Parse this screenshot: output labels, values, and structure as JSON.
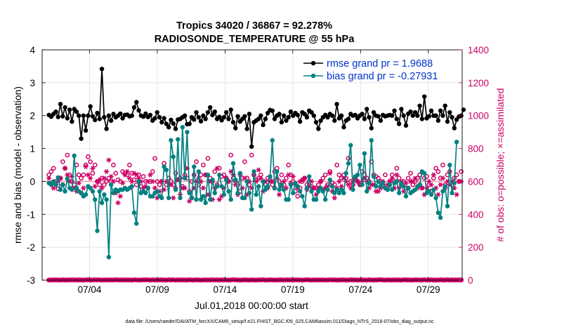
{
  "figure": {
    "title_line1": "Tropics 34020 / 36867 = 92.278%",
    "title_line2": "RADIOSONDE_TEMPERATURE @ 55 hPa",
    "footer": "data file: /Users/raeder/DAI/ATM_forcXX/CAM6_setup/f.e21.FHIST_BGC.f09_025.CAM6assim.011/Diags_NTrS_2018-07/obs_diag_output.nc"
  },
  "colors": {
    "rmse": "#000000",
    "bias": "#008080",
    "obs": "#cc0066",
    "legend_text": "#0033cc",
    "zero_line": "#e6a0a0",
    "grid": "#dddddd"
  },
  "chart_data": {
    "type": "line",
    "xlabel": "Jul.01,2018 00:00:00 start",
    "ylabel": "rmse and bias (model - observation)",
    "y2label": "# of obs: o=possible; ×=assimilated",
    "xlim": [
      0.5,
      31.5
    ],
    "ylim": [
      -3,
      4
    ],
    "y2lim": [
      0,
      1400
    ],
    "x_ticks": [
      4,
      9,
      14,
      19,
      24,
      29
    ],
    "x_tick_labels": [
      "07/04",
      "07/09",
      "07/14",
      "07/19",
      "07/24",
      "07/29"
    ],
    "y_ticks": [
      -3,
      -2,
      -1,
      0,
      1,
      2,
      3,
      4
    ],
    "y2_ticks": [
      0,
      200,
      400,
      600,
      800,
      1000,
      1200,
      1400
    ],
    "legend": [
      "rmse grand pr = 1.9688",
      "bias grand pr = -0.27931"
    ],
    "series": [
      {
        "name": "rmse grand pr = 1.9688",
        "axis": "left",
        "values": [
          2.02,
          1.97,
          2.05,
          2.12,
          1.96,
          2.35,
          1.98,
          2.25,
          1.92,
          2.18,
          1.82,
          2.2,
          2.12,
          2.0,
          1.3,
          2.0,
          1.55,
          2.0,
          2.28,
          1.98,
          1.87,
          2.08,
          1.9,
          3.42,
          1.95,
          1.6,
          2.0,
          1.85,
          2.05,
          1.95,
          2.0,
          2.06,
          1.92,
          2.02,
          2.03,
          1.98,
          2.0,
          2.25,
          2.41,
          2.16,
          2.0,
          1.97,
          2.06,
          1.96,
          2.02,
          1.85,
          1.92,
          2.1,
          1.95,
          1.8,
          1.92,
          1.75,
          1.65,
          1.87,
          1.76,
          1.6,
          1.88,
          1.9,
          1.95,
          2.0,
          1.74,
          1.75,
          1.95,
          1.88,
          2.1,
          1.95,
          1.83,
          2.0,
          1.9,
          2.1,
          2.25,
          2.02,
          2.12,
          1.9,
          1.96,
          1.86,
          1.95,
          2.1,
          1.9,
          2.18,
          1.8,
          1.62,
          1.98,
          1.82,
          1.9,
          1.98,
          1.6,
          2.05,
          1.06,
          1.8,
          1.85,
          1.9,
          2.0,
          1.72,
          1.9,
          2.08,
          2.17,
          2.15,
          1.9,
          2.0,
          2.05,
          1.8,
          2.0,
          1.85,
          1.95,
          2.12,
          2.0,
          2.08,
          2.02,
          1.82,
          2.1,
          2.05,
          1.95,
          2.15,
          2.1,
          2.0,
          1.8,
          1.6,
          1.85,
          1.95,
          2.02,
          1.95,
          2.05,
          2.0,
          1.85,
          2.35,
          1.92,
          2.0,
          1.65,
          1.85,
          1.9,
          2.05,
          2.0,
          2.02,
          1.92,
          2.0,
          2.05,
          1.9,
          2.2,
          1.95,
          1.62,
          2.1,
          2.0,
          1.98,
          1.85,
          2.02,
          1.98,
          2.0,
          2.02,
          2.0,
          2.15,
          1.9,
          1.75,
          2.2,
          2.0,
          1.7,
          2.06,
          2.12,
          2.0,
          2.1,
          2.0,
          2.3,
          1.9,
          2.58,
          1.92,
          1.98,
          2.15,
          2.0,
          2.0,
          1.85,
          2.15,
          2.0,
          2.3,
          1.82,
          2.1,
          1.95,
          1.62,
          1.88,
          1.97,
          2.0,
          2.18
        ]
      },
      {
        "name": "bias grand pr = -0.27931",
        "axis": "left",
        "values": [
          -0.05,
          -0.1,
          0.0,
          -0.1,
          0.12,
          -0.25,
          -0.1,
          -0.3,
          0.08,
          -0.2,
          -0.25,
          0.78,
          -0.2,
          -0.3,
          -0.35,
          -0.45,
          -0.4,
          -0.15,
          -0.2,
          -0.3,
          -0.55,
          -1.5,
          -0.3,
          -0.65,
          -0.4,
          -0.55,
          -2.3,
          -0.1,
          -0.35,
          -0.25,
          -0.3,
          -0.25,
          -0.25,
          -0.2,
          -0.25,
          -0.2,
          -0.15,
          -0.95,
          -1.28,
          0.0,
          -0.35,
          -0.3,
          -0.35,
          -0.2,
          -0.45,
          -0.45,
          -0.35,
          -0.3,
          -0.45,
          -0.5,
          0.45,
          0.35,
          -0.5,
          1.25,
          0.75,
          -0.25,
          1.28,
          -0.5,
          1.65,
          0.1,
          1.5,
          -0.35,
          -0.5,
          0.45,
          -0.55,
          0.3,
          -0.55,
          -0.45,
          -0.65,
          0.2,
          -0.55,
          0.05,
          -0.35,
          -0.15,
          0.2,
          -0.15,
          -0.4,
          0.05,
          -0.3,
          -0.55,
          0.55,
          0.05,
          -0.35,
          0.25,
          -0.5,
          -0.5,
          0.0,
          -0.35,
          -0.85,
          0.3,
          -0.4,
          -0.15,
          -0.75,
          0.0,
          -0.25,
          -0.15,
          0.15,
          1.25,
          -0.2,
          0.3,
          -0.25,
          -0.1,
          -0.25,
          -0.55,
          -0.55,
          -0.1,
          -0.35,
          -0.05,
          -0.15,
          -0.3,
          -0.45,
          -0.75,
          -0.2,
          0.15,
          -0.3,
          -0.55,
          -0.55,
          -0.3,
          -0.2,
          -0.3,
          -0.55,
          -0.25,
          0.05,
          -0.15,
          -0.35,
          -0.25,
          -0.35,
          -0.25,
          -0.35,
          0.25,
          0.55,
          1.1,
          -0.25,
          0.15,
          0.2,
          0.5,
          -0.1,
          0.85,
          -0.3,
          -0.05,
          1.25,
          0.15,
          -0.15,
          0.0,
          -0.15,
          -0.05,
          -0.2,
          -0.25,
          -0.1,
          -0.25,
          -0.05,
          0.0,
          -0.35,
          -0.05,
          -0.15,
          -0.45,
          -0.2,
          -0.35,
          -0.3,
          -0.25,
          -0.15,
          -0.1,
          0.3,
          0.25,
          -0.35,
          -0.3,
          -0.4,
          -0.25,
          -0.5,
          -0.95,
          -1.1,
          -0.3,
          -0.15,
          -0.75,
          0.5,
          -0.35,
          -0.05,
          1.2
        ]
      },
      {
        "name": "possible",
        "axis": "right",
        "marker": "o",
        "values": [
          640,
          660,
          680,
          600,
          555,
          620,
          720,
          680,
          760,
          640,
          600,
          580,
          700,
          640,
          620,
          640,
          700,
          750,
          720,
          650,
          700,
          600,
          580,
          620,
          580,
          600,
          620,
          600,
          700,
          650,
          610,
          600,
          660,
          650,
          640,
          700,
          650,
          610,
          580,
          640,
          570,
          630,
          600,
          560,
          600,
          660,
          740,
          600,
          580,
          600,
          710,
          580,
          620,
          600,
          580,
          650,
          610,
          620,
          570,
          640,
          620,
          540,
          600,
          640,
          720,
          580,
          640,
          700,
          640,
          740,
          620,
          600,
          660,
          580,
          680,
          630,
          640,
          620,
          600,
          760,
          620,
          600,
          580,
          540,
          620,
          720,
          620,
          580,
          760,
          640,
          610,
          620,
          640,
          600,
          580,
          620,
          610,
          580,
          660,
          680,
          600,
          640,
          580,
          620,
          700,
          640,
          600,
          540,
          510,
          560,
          600,
          620,
          580,
          600,
          570,
          560,
          560,
          580,
          600,
          620,
          640,
          580,
          660,
          590,
          580,
          700,
          640,
          620,
          640,
          620,
          740,
          600,
          580,
          620,
          600,
          580,
          660,
          640,
          620,
          600,
          720,
          640,
          630,
          620,
          600,
          580,
          640,
          560,
          600,
          640,
          600,
          680,
          620,
          580,
          600,
          560,
          620,
          650,
          580,
          600,
          620,
          640,
          560,
          620,
          630,
          580,
          540,
          620,
          680,
          660,
          620,
          700,
          580,
          640,
          660,
          580,
          620,
          640,
          600,
          660
        ]
      },
      {
        "name": "assimilated",
        "axis": "right",
        "marker": "*",
        "values": [
          620,
          590,
          560,
          580,
          600,
          620,
          580,
          680,
          640,
          600,
          630,
          560,
          540,
          590,
          530,
          560,
          690,
          640,
          620,
          680,
          570,
          600,
          610,
          560,
          620,
          660,
          730,
          630,
          600,
          530,
          470,
          510,
          590,
          640,
          660,
          620,
          600,
          650,
          640,
          620,
          600,
          560,
          570,
          600,
          640,
          600,
          560,
          500,
          540,
          600,
          550,
          600,
          590,
          580,
          500,
          560,
          610,
          520,
          560,
          560,
          680,
          480,
          500,
          560,
          600,
          620,
          600,
          560,
          640,
          520,
          600,
          490,
          560,
          680,
          490,
          510,
          560,
          620,
          600,
          660,
          640,
          580,
          520,
          640,
          560,
          620,
          520,
          600,
          560,
          640,
          600,
          670,
          620,
          540,
          600,
          560,
          600,
          600,
          560,
          620,
          520,
          570,
          600,
          560,
          640,
          590,
          630,
          580,
          560,
          600,
          610,
          620,
          550,
          570,
          600,
          560,
          520,
          560,
          600,
          550,
          560,
          570,
          650,
          540,
          500,
          560,
          600,
          570,
          620,
          600,
          580,
          560,
          600,
          620,
          600,
          580,
          600,
          620,
          600,
          560,
          580,
          580,
          540,
          540,
          560,
          600,
          560,
          580,
          600,
          620,
          560,
          640,
          560,
          600,
          540,
          590,
          560,
          600,
          600,
          620,
          560,
          580,
          560,
          520,
          560,
          600,
          580,
          640,
          560,
          520,
          580,
          620,
          560,
          600,
          580,
          600,
          560,
          520,
          600,
          600
        ]
      },
      {
        "name": "possible (bottom)",
        "axis": "right",
        "marker": "o",
        "values": [
          1,
          0,
          2,
          1,
          0,
          1,
          2,
          1,
          0,
          1,
          3,
          1,
          0,
          2,
          1,
          0,
          1,
          2,
          0,
          1,
          3,
          1,
          2,
          0,
          1,
          2,
          1,
          0,
          1,
          3,
          2,
          1,
          0,
          1,
          2,
          1,
          0,
          2,
          1,
          0,
          1,
          2,
          3,
          1,
          0,
          2,
          1,
          0,
          1,
          2,
          1,
          0,
          3,
          1,
          2,
          0,
          1,
          2,
          1,
          0,
          1,
          3,
          1,
          0,
          2,
          1,
          0,
          1,
          2,
          0,
          1,
          3,
          1,
          2,
          0,
          1,
          2,
          1,
          0,
          1,
          3,
          2,
          1,
          0,
          1,
          2,
          1,
          0,
          2,
          1,
          0,
          1,
          2,
          3,
          1,
          0,
          2,
          1,
          0,
          1,
          2,
          1,
          0,
          3,
          1,
          2,
          0,
          1,
          2,
          1,
          0,
          1,
          3,
          1,
          0,
          2,
          1,
          0,
          1,
          2,
          0,
          1,
          3,
          1,
          2,
          0,
          1,
          2,
          1,
          0,
          1,
          3,
          2,
          1,
          0,
          1,
          2,
          1,
          0,
          2,
          1,
          0,
          1,
          2,
          3,
          1,
          0,
          2,
          1,
          0,
          1,
          2,
          1,
          0,
          3,
          1,
          2,
          0,
          1,
          2,
          1,
          0,
          1,
          3,
          1,
          0,
          2,
          1,
          0,
          1,
          2,
          0,
          1,
          3,
          1,
          2,
          0,
          1,
          2,
          1
        ]
      },
      {
        "name": "assimilated (bottom)",
        "axis": "right",
        "marker": "*",
        "values": [
          0,
          1,
          0,
          2,
          1,
          0,
          1,
          0,
          2,
          1,
          0,
          1,
          2,
          0,
          1,
          0,
          2,
          1,
          0,
          1,
          0,
          2,
          1,
          0,
          1,
          0,
          1,
          2,
          0,
          1,
          0,
          1,
          2,
          1,
          0,
          1,
          0,
          2,
          1,
          0,
          1,
          0,
          1,
          2,
          0,
          1,
          0,
          1,
          2,
          1,
          0,
          1,
          0,
          2,
          1,
          0,
          1,
          0,
          1,
          2,
          0,
          1,
          0,
          1,
          2,
          1,
          0,
          1,
          0,
          2,
          1,
          0,
          1,
          0,
          1,
          2,
          0,
          1,
          0,
          1,
          2,
          1,
          0,
          1,
          0,
          2,
          1,
          0,
          1,
          0,
          1,
          2,
          0,
          1,
          0,
          1,
          2,
          1,
          0,
          1,
          0,
          2,
          1,
          0,
          1,
          0,
          1,
          2,
          0,
          1,
          0,
          1,
          2,
          1,
          0,
          1,
          0,
          2,
          1,
          0,
          1,
          0,
          1,
          2,
          0,
          1,
          0,
          1,
          2,
          1,
          0,
          1,
          0,
          2,
          1,
          0,
          1,
          0,
          1,
          2,
          0,
          1,
          0,
          1,
          2,
          1,
          0,
          1,
          0,
          2,
          1,
          0,
          1,
          0,
          1,
          2,
          0,
          1,
          0,
          1,
          2,
          1,
          0,
          1,
          0,
          2,
          1,
          0,
          1,
          0,
          1,
          2,
          0,
          1,
          0,
          1,
          2,
          1,
          0,
          1
        ]
      }
    ]
  }
}
